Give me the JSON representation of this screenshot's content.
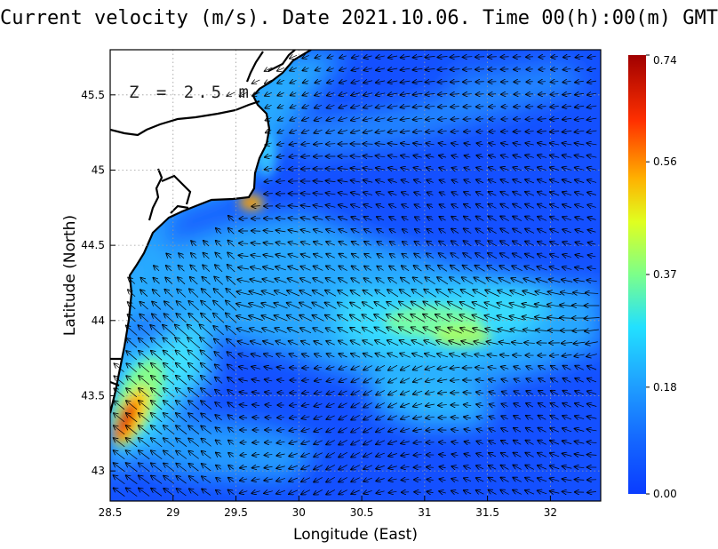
{
  "title": "Current velocity (m/s). Date 2021.10.06. Time 00(h):00(m) GMT",
  "depth_label": "Z = 2.5 m",
  "chart_data": {
    "type": "vector-field",
    "title": "Current velocity (m/s). Date 2021.10.06. Time 00(h):00(m) GMT",
    "xlabel": "Longitude (East)",
    "ylabel": "Latitude (North)",
    "xlim": [
      28.5,
      32.4
    ],
    "ylim": [
      42.8,
      45.8
    ],
    "xticks": [
      "28.5",
      "29",
      "29.5",
      "30",
      "30.5",
      "31",
      "31.5",
      "32"
    ],
    "yticks": [
      "43",
      "43.5",
      "44",
      "44.5",
      "45",
      "45.5"
    ],
    "grid": true,
    "colorbar": {
      "ticks": [
        "0.00",
        "0.18",
        "0.37",
        "0.56",
        "0.74"
      ],
      "min": 0.0,
      "max": 0.74,
      "colormap": "jet"
    },
    "speed_hotspots": [
      {
        "lon": 28.65,
        "lat": 43.35,
        "speed": 0.72
      },
      {
        "lon": 29.6,
        "lat": 44.78,
        "speed": 0.55
      },
      {
        "lon": 31.2,
        "lat": 43.9,
        "speed": 0.4
      }
    ]
  },
  "colors": {
    "land": "#ffffff",
    "coast": "#000000",
    "grid": "#9a9a9a"
  }
}
